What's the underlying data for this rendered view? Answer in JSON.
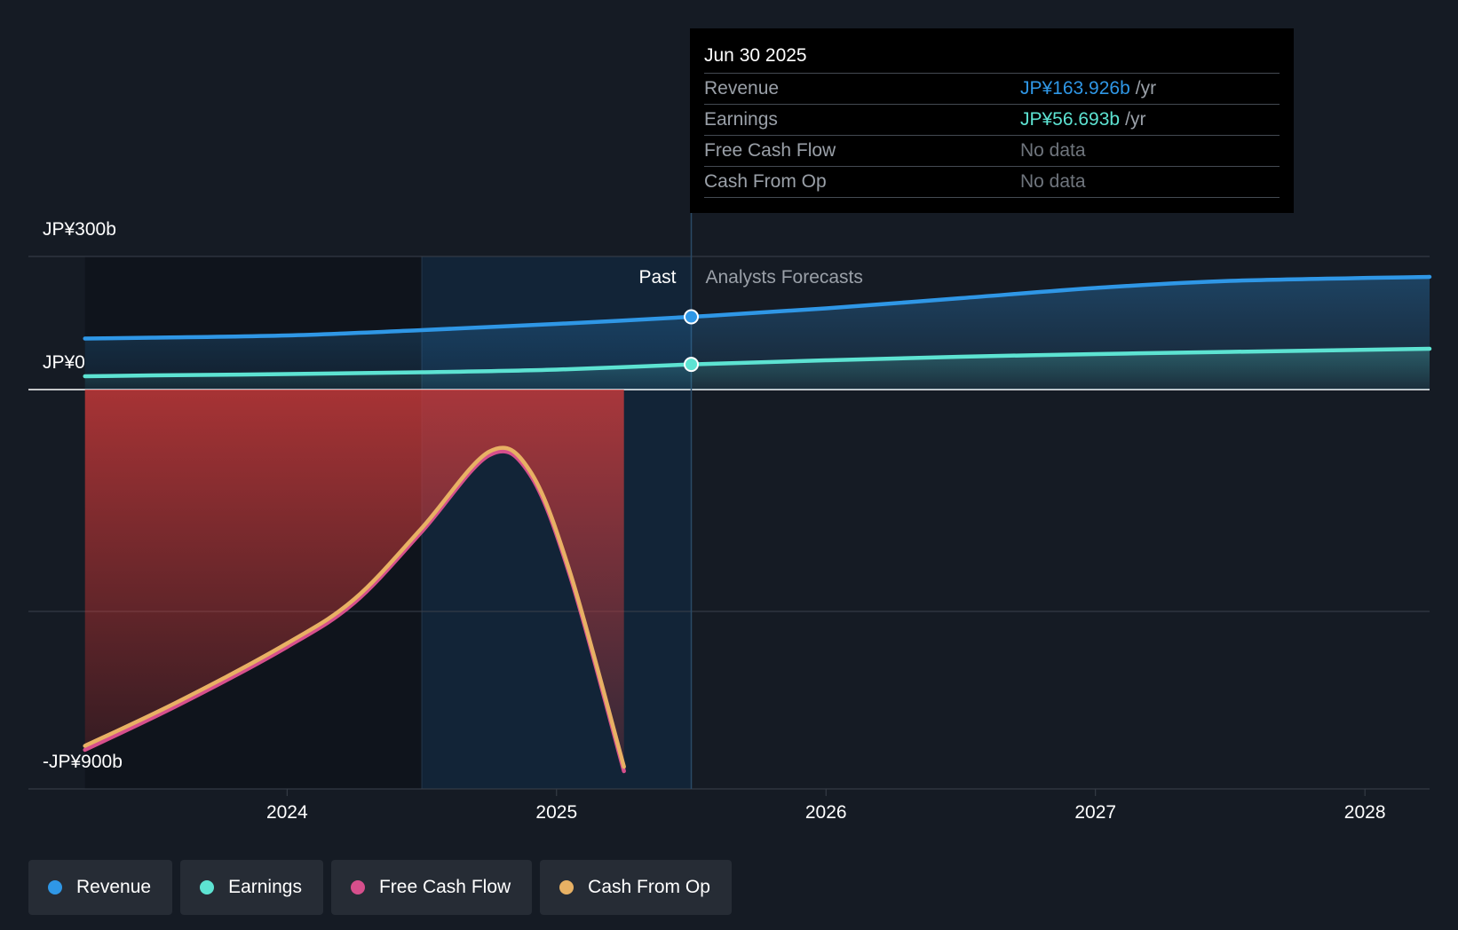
{
  "chart_data": {
    "type": "area",
    "y_axis": {
      "unit": "JP¥ billions",
      "ylim": [
        -900,
        300
      ],
      "tick_labels": [
        {
          "value": 300,
          "label": "JP¥300b"
        },
        {
          "value": 0,
          "label": "JP¥0"
        },
        {
          "value": -900,
          "label": "-JP¥900b"
        }
      ],
      "gridlines": [
        300,
        -500
      ]
    },
    "x_axis": {
      "xlim": [
        2023.04,
        2028.24
      ],
      "ticks": [
        {
          "value": 2024,
          "label": "2024"
        },
        {
          "value": 2025,
          "label": "2025"
        },
        {
          "value": 2026,
          "label": "2026"
        },
        {
          "value": 2027,
          "label": "2027"
        },
        {
          "value": 2028,
          "label": "2028"
        }
      ]
    },
    "regions": {
      "past_label": "Past",
      "forecast_label": "Analysts Forecasts",
      "highlight_start": 2024.5,
      "current": 2025.5
    },
    "series": [
      {
        "name": "Revenue",
        "key": "revenue",
        "color": "#2f97e6",
        "points": [
          [
            2023.25,
            115
          ],
          [
            2023.5,
            117
          ],
          [
            2024.0,
            122
          ],
          [
            2024.5,
            134
          ],
          [
            2025.0,
            148
          ],
          [
            2025.5,
            163.9
          ],
          [
            2026.0,
            183
          ],
          [
            2026.5,
            206
          ],
          [
            2027.0,
            229
          ],
          [
            2027.5,
            245
          ],
          [
            2028.24,
            254
          ]
        ]
      },
      {
        "name": "Earnings",
        "key": "earnings",
        "color": "#5de3d2",
        "points": [
          [
            2023.25,
            30
          ],
          [
            2023.5,
            32
          ],
          [
            2024.0,
            35
          ],
          [
            2024.5,
            39
          ],
          [
            2025.0,
            45
          ],
          [
            2025.5,
            56.7
          ],
          [
            2026.0,
            66
          ],
          [
            2026.5,
            74
          ],
          [
            2027.0,
            80
          ],
          [
            2027.5,
            85
          ],
          [
            2028.24,
            92
          ]
        ]
      },
      {
        "name": "Free Cash Flow",
        "key": "fcf",
        "color": "#d64f8c",
        "points": [
          [
            2023.25,
            -812
          ],
          [
            2023.6,
            -710
          ],
          [
            2024.0,
            -580
          ],
          [
            2024.25,
            -480
          ],
          [
            2024.5,
            -320
          ],
          [
            2024.75,
            -148
          ],
          [
            2024.9,
            -190
          ],
          [
            2025.05,
            -420
          ],
          [
            2025.25,
            -860
          ]
        ]
      },
      {
        "name": "Cash From Op",
        "key": "cfo",
        "color": "#e8b164",
        "points": [
          [
            2023.25,
            -803
          ],
          [
            2023.6,
            -702
          ],
          [
            2024.0,
            -572
          ],
          [
            2024.25,
            -472
          ],
          [
            2024.5,
            -312
          ],
          [
            2024.75,
            -140
          ],
          [
            2024.9,
            -182
          ],
          [
            2025.05,
            -412
          ],
          [
            2025.25,
            -850
          ]
        ]
      }
    ]
  },
  "tooltip": {
    "date": "Jun 30 2025",
    "rows": [
      {
        "label": "Revenue",
        "value": "JP¥163.926b",
        "unit": "/yr",
        "color": "#2f97e6"
      },
      {
        "label": "Earnings",
        "value": "JP¥56.693b",
        "unit": "/yr",
        "color": "#5de3d2"
      },
      {
        "label": "Free Cash Flow",
        "value": "No data",
        "unit": "",
        "color": "#6f757d"
      },
      {
        "label": "Cash From Op",
        "value": "No data",
        "unit": "",
        "color": "#6f757d"
      }
    ]
  },
  "legend": [
    {
      "label": "Revenue",
      "color": "#2f97e6"
    },
    {
      "label": "Earnings",
      "color": "#5de3d2"
    },
    {
      "label": "Free Cash Flow",
      "color": "#d64f8c"
    },
    {
      "label": "Cash From Op",
      "color": "#e8b164"
    }
  ]
}
